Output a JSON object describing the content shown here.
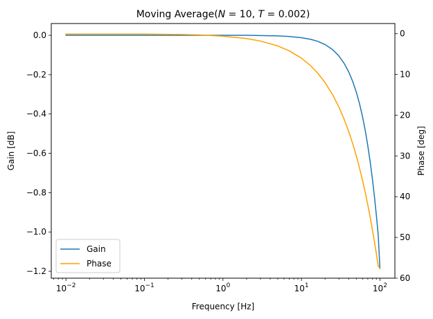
{
  "chart_data": {
    "type": "line",
    "title": "Moving Average(N = 10, T = 0.002)",
    "xlabel": "Frequency [Hz]",
    "ylabel": "Gain [dB]",
    "y2label": "Phase [deg]",
    "xscale": "log",
    "xlim": [
      0.0065,
      155
    ],
    "ylim": [
      -1.235,
      0.06
    ],
    "y2lim": [
      60,
      -2.5
    ],
    "x_ticks": [
      {
        "value": 0.01,
        "base": "10",
        "exp": "−2"
      },
      {
        "value": 0.1,
        "base": "10",
        "exp": "−1"
      },
      {
        "value": 1,
        "base": "10",
        "exp": "0"
      },
      {
        "value": 10,
        "base": "10",
        "exp": "1"
      },
      {
        "value": 100,
        "base": "10",
        "exp": "2"
      }
    ],
    "y_ticks": [
      {
        "value": 0.0,
        "label": "0.0"
      },
      {
        "value": -0.2,
        "label": "−0.2"
      },
      {
        "value": -0.4,
        "label": "−0.4"
      },
      {
        "value": -0.6,
        "label": "−0.6"
      },
      {
        "value": -0.8,
        "label": "−0.8"
      },
      {
        "value": -1.0,
        "label": "−1.0"
      },
      {
        "value": -1.2,
        "label": "−1.2"
      }
    ],
    "y2_ticks": [
      {
        "value": 0,
        "label": "0"
      },
      {
        "value": 10,
        "label": "10"
      },
      {
        "value": 20,
        "label": "20"
      },
      {
        "value": 30,
        "label": "30"
      },
      {
        "value": 40,
        "label": "40"
      },
      {
        "value": 50,
        "label": "50"
      },
      {
        "value": 60,
        "label": "60"
      }
    ],
    "legend": "lower-left",
    "grid": false,
    "series": [
      {
        "name": "Gain",
        "axis": "left",
        "color": "#1f77b4",
        "x": [
          0.01,
          0.03,
          0.1,
          0.3,
          1,
          2,
          3,
          5,
          7,
          10,
          13,
          16,
          20,
          25,
          30,
          35,
          40,
          45,
          50,
          55,
          60,
          65,
          70,
          75,
          80,
          85,
          90,
          95,
          100
        ],
        "y": [
          0.0,
          0.0,
          0.0,
          0.0,
          0.0,
          0.0,
          -0.001,
          -0.003,
          -0.006,
          -0.012,
          -0.02,
          -0.03,
          -0.047,
          -0.073,
          -0.105,
          -0.143,
          -0.186,
          -0.235,
          -0.289,
          -0.349,
          -0.414,
          -0.485,
          -0.561,
          -0.642,
          -0.728,
          -0.819,
          -0.915,
          -1.015,
          -1.186
        ]
      },
      {
        "name": "Phase",
        "axis": "right",
        "color": "#ff9f00",
        "x": [
          0.01,
          0.03,
          0.1,
          0.3,
          0.5,
          1,
          2,
          3,
          5,
          7,
          10,
          13,
          16,
          20,
          25,
          30,
          35,
          40,
          45,
          50,
          55,
          60,
          65,
          70,
          75,
          80,
          85,
          90,
          95,
          100
        ],
        "y": [
          0.1,
          0.1,
          0.1,
          0.2,
          0.3,
          0.6,
          1.2,
          1.8,
          3.0,
          4.2,
          6.0,
          7.8,
          9.6,
          12.0,
          15.0,
          18.0,
          21.0,
          24.0,
          27.0,
          30.0,
          33.0,
          36.0,
          39.0,
          42.0,
          45.0,
          48.0,
          51.0,
          54.0,
          57.0,
          57.6
        ]
      }
    ]
  }
}
